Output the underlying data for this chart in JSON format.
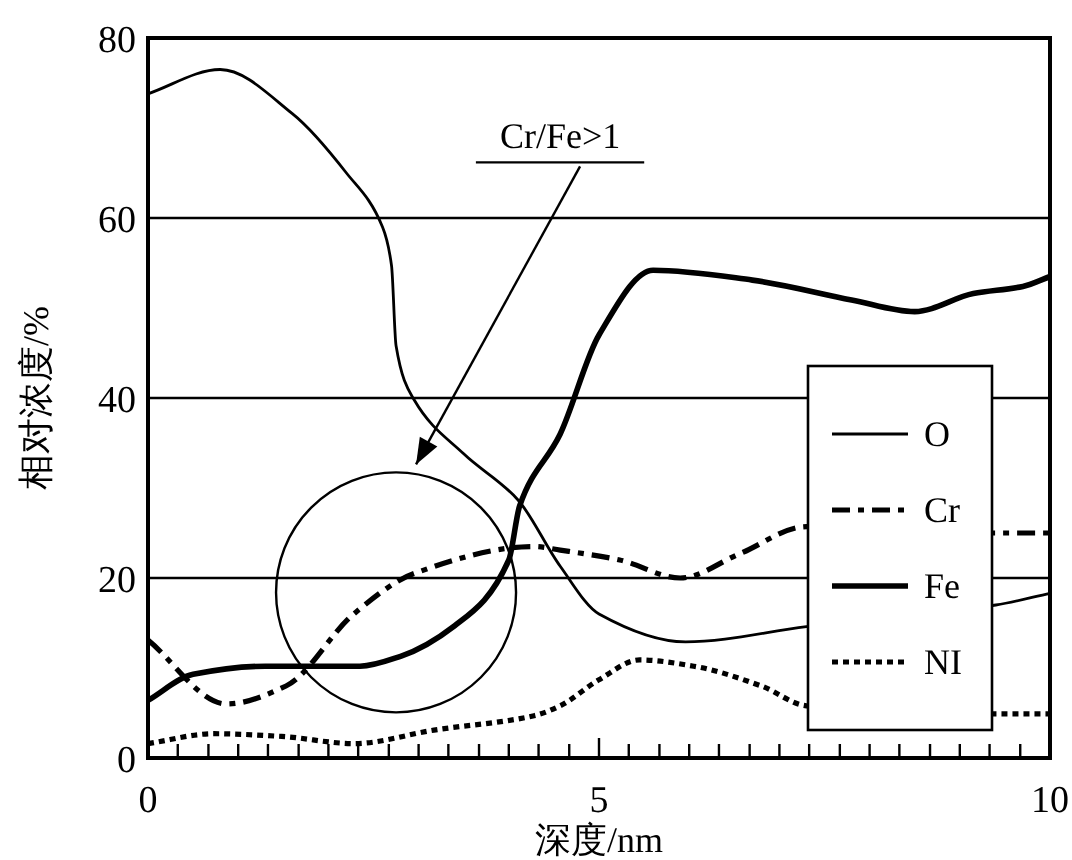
{
  "chart_data": {
    "type": "line",
    "xlabel": "深度/nm",
    "ylabel": "相对浓度/%",
    "xlim": [
      0,
      10
    ],
    "ylim": [
      0,
      80
    ],
    "xticks": [
      0,
      {
        "value": 0.33,
        "label": null
      },
      {
        "value": 0.67,
        "label": null
      },
      {
        "value": 1,
        "label": null
      },
      {
        "value": 1.33,
        "label": null
      },
      {
        "value": 1.67,
        "label": null
      },
      {
        "value": 2,
        "label": null
      },
      {
        "value": 2.33,
        "label": null
      },
      {
        "value": 2.67,
        "label": null
      },
      {
        "value": 3,
        "label": null
      },
      {
        "value": 3.33,
        "label": null
      },
      {
        "value": 3.67,
        "label": null
      },
      {
        "value": 4,
        "label": null
      },
      {
        "value": 4.33,
        "label": null
      },
      {
        "value": 4.67,
        "label": null
      },
      5,
      {
        "value": 5.33,
        "label": null
      },
      {
        "value": 5.67,
        "label": null
      },
      {
        "value": 6,
        "label": null
      },
      {
        "value": 6.33,
        "label": null
      },
      {
        "value": 6.67,
        "label": null
      },
      {
        "value": 7,
        "label": null
      },
      {
        "value": 7.33,
        "label": null
      },
      {
        "value": 7.67,
        "label": null
      },
      {
        "value": 8,
        "label": null
      },
      {
        "value": 8.33,
        "label": null
      },
      {
        "value": 8.67,
        "label": null
      },
      {
        "value": 9,
        "label": null
      },
      {
        "value": 9.33,
        "label": null
      },
      {
        "value": 9.67,
        "label": null
      },
      10
    ],
    "yticks": [
      0,
      20,
      40,
      60,
      80
    ],
    "grid": "y",
    "legend": "bottom right",
    "series": [
      {
        "name": "O",
        "color": "#000000",
        "line_style": "solid",
        "x": [
          0,
          0.8,
          1.6,
          2.2,
          2.6,
          2.7,
          2.75,
          2.95,
          3.5,
          4.1,
          4.57,
          5.0,
          5.96,
          7.3,
          9.4,
          10
        ],
        "values": [
          73.8,
          76.5,
          71.6,
          65,
          59,
          54.7,
          45.8,
          39.8,
          33.8,
          28.7,
          21.3,
          16,
          12.9,
          14.6,
          17,
          18.3
        ]
      },
      {
        "name": "Cr",
        "color": "#000000",
        "line_style": "dashdot",
        "x": [
          0,
          0.87,
          1.53,
          2.28,
          2.95,
          4.28,
          4.57,
          5.23,
          5.9,
          6.56,
          7.3,
          9.38,
          10
        ],
        "values": [
          13.1,
          6,
          8,
          16,
          20.5,
          23.5,
          23.1,
          22,
          20,
          22.7,
          25.7,
          25,
          25
        ]
      },
      {
        "name": "Fe",
        "color": "#000000",
        "line_style": "solid",
        "x": [
          0,
          0.5,
          1.3,
          2.35,
          2.8,
          3.4,
          4.0,
          4.12,
          4.57,
          5.0,
          5.6,
          6.7,
          7.8,
          8.5,
          9.15,
          9.7,
          10
        ],
        "values": [
          6.4,
          9.3,
          10.2,
          10.2,
          11.3,
          14.7,
          22,
          28,
          36,
          47,
          54.2,
          53.1,
          50.9,
          49.6,
          51.6,
          52.4,
          53.5
        ]
      },
      {
        "name": "NI",
        "color": "#000000",
        "line_style": "dotted",
        "x": [
          0,
          0.73,
          1.48,
          2.28,
          3.17,
          4.28,
          4.57,
          5.0,
          5.45,
          6.05,
          6.8,
          7.3,
          9.38,
          10
        ],
        "values": [
          1.6,
          2.7,
          2.4,
          1.6,
          3.1,
          4.7,
          5.8,
          8.7,
          10.9,
          10.2,
          8,
          5.8,
          4.9,
          4.9
        ]
      }
    ],
    "annotations": [
      "Cr/Fe>1"
    ]
  }
}
